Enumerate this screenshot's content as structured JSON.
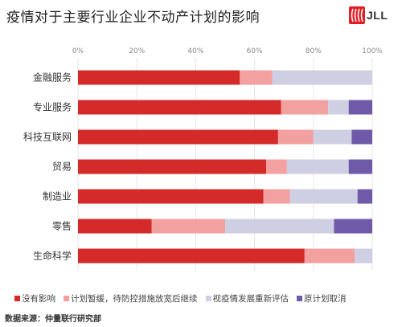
{
  "title": "疫情对于主要行业企业不动产计划的影响",
  "brand": "JLL",
  "source": "数据来源：仲量联行研究部",
  "colors": [
    "#d42a2a",
    "#f2a0a0",
    "#cfcfe3",
    "#6e5aa8"
  ],
  "chart_data": {
    "type": "bar",
    "orientation": "horizontal",
    "stacked": true,
    "percent": true,
    "categories": [
      "金融服务",
      "专业服务",
      "科技互联网",
      "贸易",
      "制造业",
      "零售",
      "生命科学"
    ],
    "series": [
      {
        "name": "没有影响",
        "values": [
          55,
          69,
          68,
          64,
          63,
          25,
          77
        ]
      },
      {
        "name": "计划暂缓，待防控措施放宽后继续",
        "values": [
          11,
          16,
          12,
          7,
          9,
          25,
          17
        ]
      },
      {
        "name": "视疫情发展重新评估",
        "values": [
          34,
          7,
          13,
          21,
          23,
          37,
          6
        ]
      },
      {
        "name": "原计划取消",
        "values": [
          0,
          8,
          7,
          8,
          5,
          13,
          0
        ]
      }
    ],
    "xlim": [
      0,
      100
    ],
    "x_ticks": [
      "0%",
      "20%",
      "40%",
      "60%",
      "80%",
      "100%"
    ],
    "grid": true,
    "legend_position": "bottom"
  }
}
